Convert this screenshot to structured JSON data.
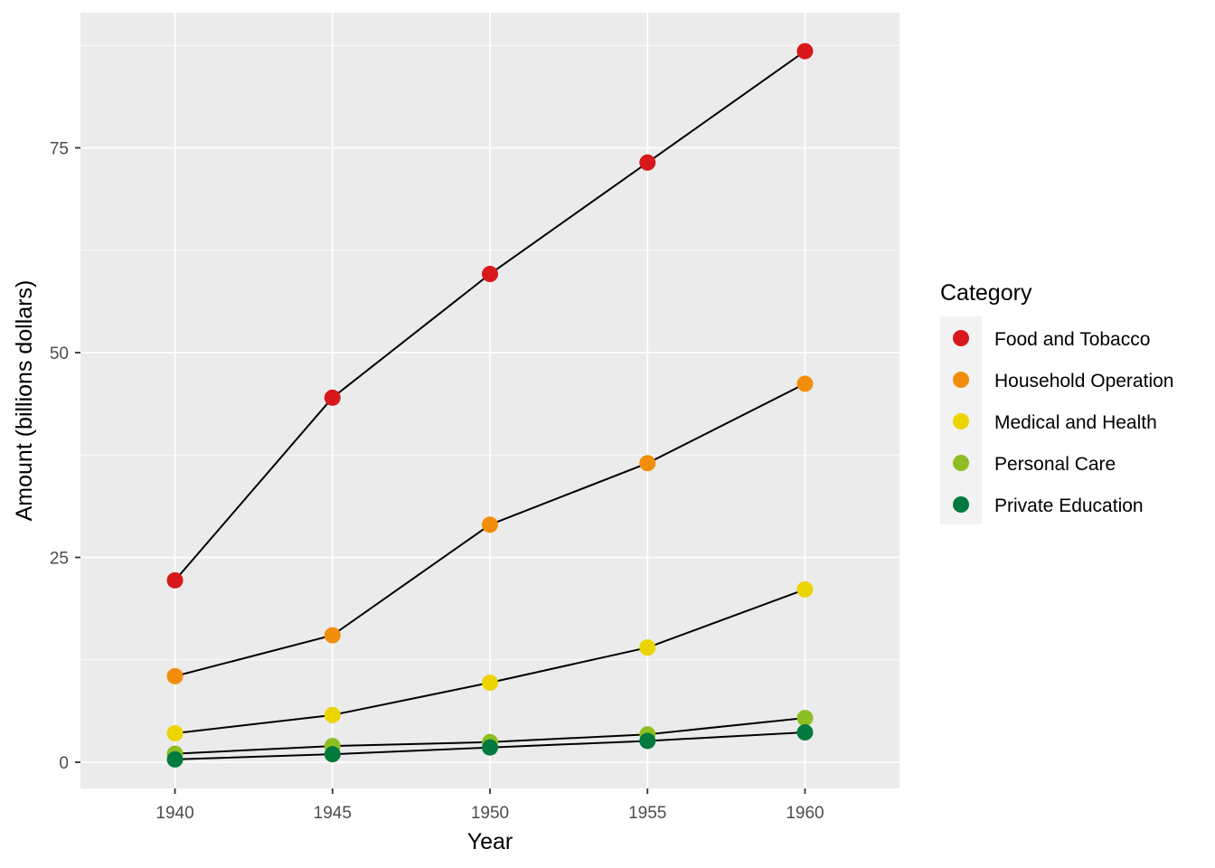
{
  "chart_data": {
    "type": "line",
    "xlabel": "Year",
    "ylabel": "Amount (billions dollars)",
    "x": [
      1940,
      1945,
      1950,
      1955,
      1960
    ],
    "xlim": [
      1937,
      1963
    ],
    "ylim": [
      -3.2,
      91.5
    ],
    "x_ticks": [
      1940,
      1945,
      1950,
      1955,
      1960
    ],
    "y_ticks": [
      0,
      25,
      50,
      75
    ],
    "grid": true,
    "legend": {
      "title": "Category",
      "position": "right"
    },
    "line_color": "#000000",
    "panel_background": "#ebebeb",
    "grid_color": "#ffffff",
    "series": [
      {
        "name": "Food and Tobacco",
        "color": "#d7191c",
        "values": [
          22.2,
          44.5,
          59.6,
          73.2,
          86.8
        ]
      },
      {
        "name": "Household Operation",
        "color": "#f28e0b",
        "values": [
          10.5,
          15.5,
          29.0,
          36.5,
          46.2
        ]
      },
      {
        "name": "Medical and Health",
        "color": "#ecd400",
        "values": [
          3.53,
          5.76,
          9.71,
          14.0,
          21.1
        ]
      },
      {
        "name": "Personal Care",
        "color": "#8dbe23",
        "values": [
          1.04,
          1.98,
          2.45,
          3.4,
          5.4
        ]
      },
      {
        "name": "Private Education",
        "color": "#007a3d",
        "values": [
          0.341,
          0.974,
          1.8,
          2.6,
          3.64
        ]
      }
    ]
  }
}
